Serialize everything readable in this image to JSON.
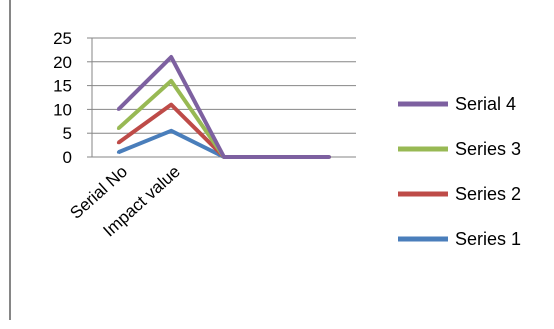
{
  "chart_data": {
    "type": "line",
    "categories": [
      "Serial No",
      "Impact value",
      "",
      "",
      ""
    ],
    "series": [
      {
        "name": "Series 1",
        "values": [
          1,
          5.5,
          0,
          0,
          0
        ]
      },
      {
        "name": "Series 2",
        "values": [
          3,
          11,
          0,
          0,
          0
        ]
      },
      {
        "name": "Series 3",
        "values": [
          6,
          16,
          0,
          0,
          0
        ]
      },
      {
        "name": "Serial 4",
        "values": [
          10,
          21,
          0,
          0,
          0
        ]
      }
    ],
    "yticks": [
      "0",
      "5",
      "10",
      "15",
      "20",
      "25"
    ],
    "ylim": [
      0,
      25
    ],
    "grid": true,
    "legend": "right",
    "colors": {
      "Series 1": "#4a7ebb",
      "Series 2": "#be4b48",
      "Series 3": "#98b954",
      "Serial 4": "#7d60a0",
      "grid": "#868686"
    }
  }
}
